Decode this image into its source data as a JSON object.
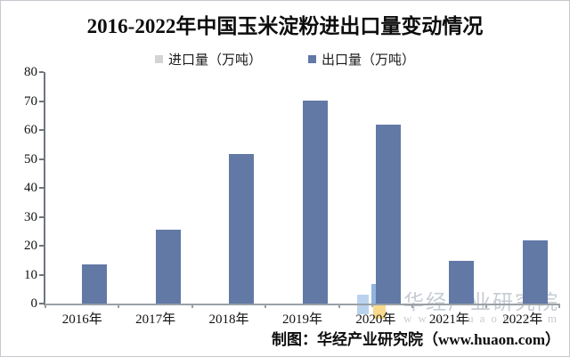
{
  "title": "2016-2022年中国玉米淀粉进出口量变动情况",
  "legend": {
    "items": [
      {
        "label": "进口量（万吨）",
        "color": "#d2d4d6"
      },
      {
        "label": "出口量（万吨）",
        "color": "#6279a6"
      }
    ]
  },
  "credit": "制图：华经产业研究院（www.huaon.com）",
  "watermark": {
    "line1": "华经产业研究院",
    "line2": "www.huaon.com",
    "text_color": "#c6ccd4",
    "logo_blue_light": "#b9d3ee",
    "logo_blue": "#8fb4dd",
    "logo_yellow": "#f8d98e"
  },
  "chart_data": {
    "type": "bar",
    "title": "2016-2022年中国玉米淀粉进出口量变动情况",
    "categories": [
      "2016年",
      "2017年",
      "2018年",
      "2019年",
      "2020年",
      "2021年",
      "2022年"
    ],
    "series": [
      {
        "name": "进口量（万吨）",
        "color": "#d2d4d6",
        "values": [
          0,
          0,
          0,
          0,
          0,
          0,
          0
        ]
      },
      {
        "name": "出口量（万吨）",
        "color": "#6279a6",
        "values": [
          13.4,
          25.5,
          51.6,
          70.2,
          62,
          14.7,
          22
        ]
      }
    ],
    "xlabel": "",
    "ylabel": "",
    "ylim": [
      0,
      80
    ],
    "yticks": [
      0,
      10,
      20,
      30,
      40,
      50,
      60,
      70,
      80
    ],
    "grid": false,
    "legend_position": "top"
  }
}
